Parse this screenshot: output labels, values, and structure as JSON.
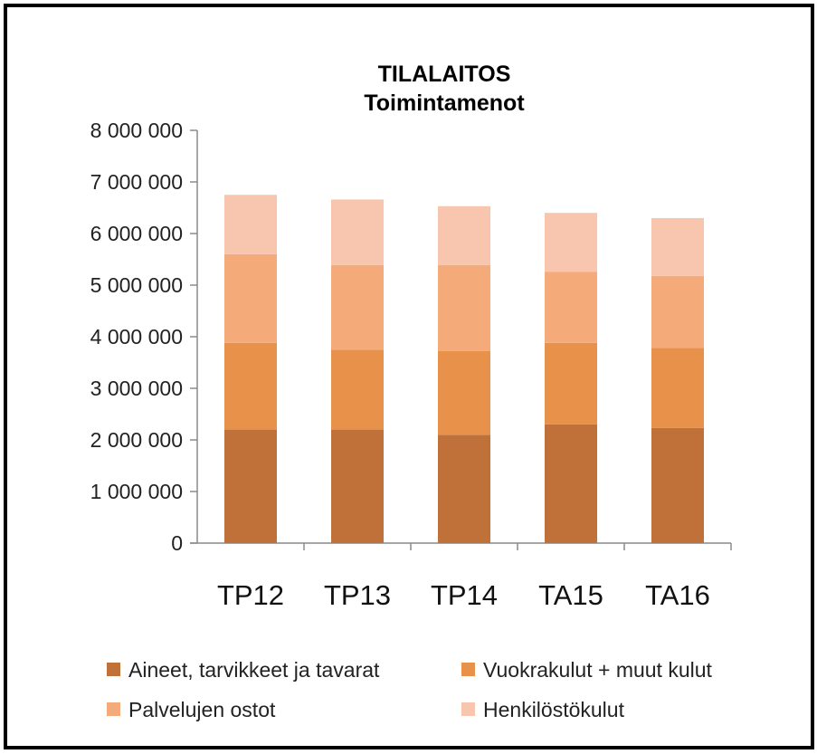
{
  "chart_data": {
    "type": "bar",
    "stacked": true,
    "title": "TILALAITOS",
    "subtitle": "Toimintamenot",
    "xlabel": "",
    "ylabel": "",
    "categories": [
      "TP12",
      "TP13",
      "TP14",
      "TA15",
      "TA16"
    ],
    "ylim": [
      0,
      8000000
    ],
    "yticks": [
      0,
      1000000,
      2000000,
      3000000,
      4000000,
      5000000,
      6000000,
      7000000,
      8000000
    ],
    "ytick_labels": [
      "0",
      "1 000 000",
      "2 000 000",
      "3 000 000",
      "4 000 000",
      "5 000 000",
      "6 000 000",
      "7 000 000",
      "8 000 000"
    ],
    "grid": false,
    "legend_position": "bottom",
    "series": [
      {
        "name": "Aineet, tarvikkeet ja tavarat",
        "color": "#c0713a",
        "values": [
          2200000,
          2200000,
          2100000,
          2300000,
          2230000
        ]
      },
      {
        "name": "Vuokrakulut + muut kulut",
        "color": "#e8914a",
        "values": [
          1680000,
          1550000,
          1620000,
          1580000,
          1550000
        ]
      },
      {
        "name": "Palvelujen ostot",
        "color": "#f5aa7a",
        "values": [
          1720000,
          1640000,
          1670000,
          1380000,
          1400000
        ]
      },
      {
        "name": "Henkilöstökulut",
        "color": "#f8c6ae",
        "values": [
          1150000,
          1270000,
          1140000,
          1140000,
          1120000
        ]
      }
    ]
  }
}
